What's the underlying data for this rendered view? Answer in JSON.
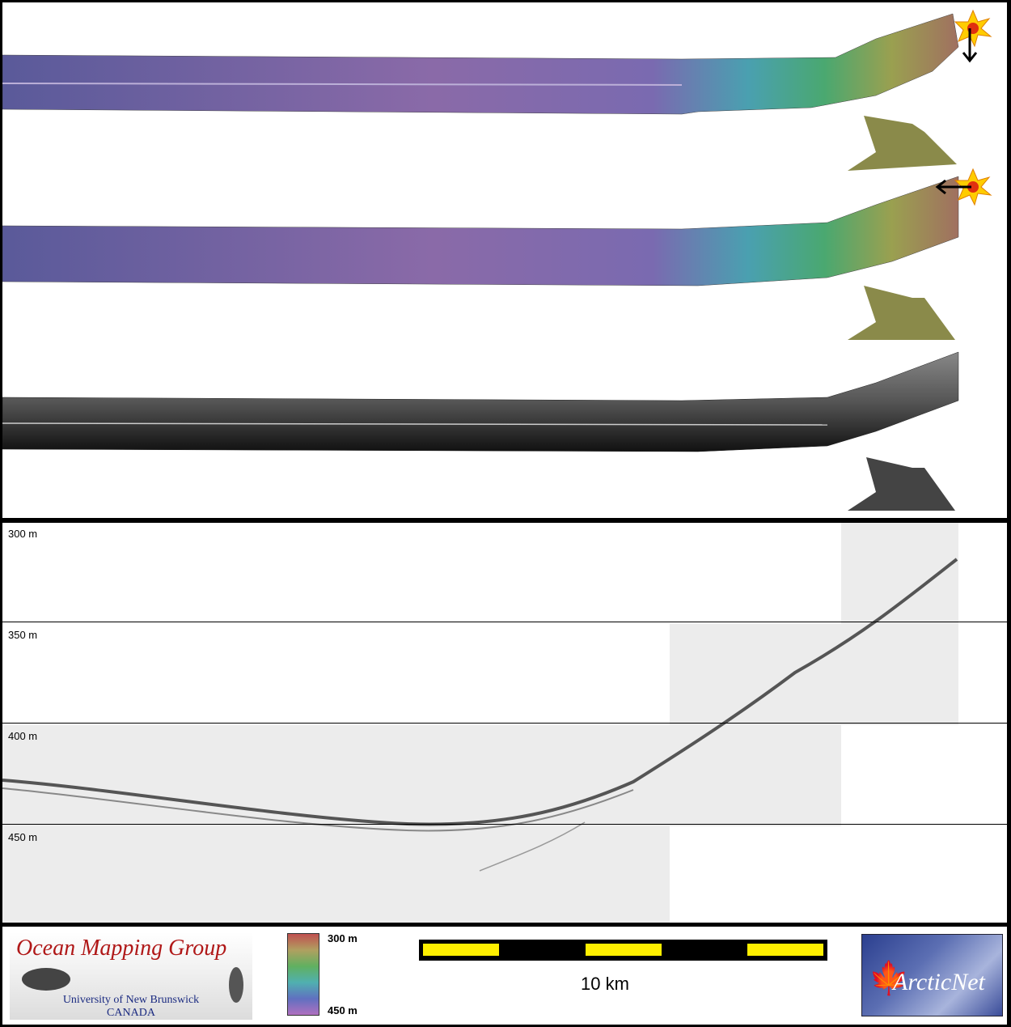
{
  "profile": {
    "depth_labels": [
      "300 m",
      "350 m",
      "400 m",
      "450 m"
    ]
  },
  "footer": {
    "omg_logo": {
      "title": "Ocean Mapping Group",
      "line1": "University of New Brunswick",
      "line2": "CANADA"
    },
    "colorbar": {
      "top_label": "300 m",
      "bottom_label": "450 m"
    },
    "scale_label": "10 km",
    "arcticnet_logo": {
      "text": "ArcticNet"
    }
  },
  "colors": {
    "scale_yellow": "#ffef00",
    "omg_red": "#b01818",
    "arctic_blue": "#2b3f8f"
  },
  "icons": [
    "sun-marker-icon",
    "arrow-down-icon",
    "arrow-left-icon",
    "maple-leaf-icon"
  ]
}
